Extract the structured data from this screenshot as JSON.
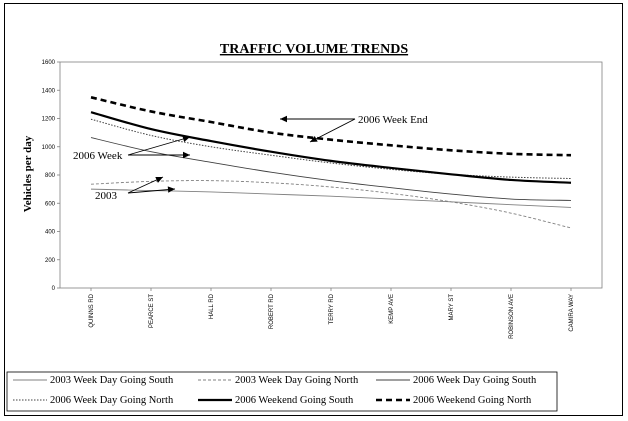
{
  "chart_data": {
    "type": "line",
    "title": "TRAFFIC VOLUME TRENDS",
    "xlabel": "",
    "ylabel": "Vehicles per day",
    "ylim": [
      0,
      1600
    ],
    "yticks": [
      0,
      200,
      400,
      600,
      800,
      1000,
      1200,
      1400,
      1600
    ],
    "categories": [
      "QUINNS RD",
      "PEARCE ST",
      "HALL RD",
      "ROBERT RD",
      "TERRY RD",
      "KEMP AVE",
      "MARY ST",
      "ROBINSON AVE",
      "CAMIRA WAY"
    ],
    "grid": "horizontal-top-only",
    "legend_placement": "bottom",
    "series": [
      {
        "name": "2003 Week Day Going South",
        "style": "thin-solid",
        "color": "#808080",
        "values": [
          700,
          690,
          680,
          665,
          650,
          630,
          610,
          590,
          570
        ]
      },
      {
        "name": "2003 Week Day Going North",
        "style": "thin-dashed",
        "color": "#808080",
        "values": [
          735,
          755,
          760,
          745,
          715,
          670,
          610,
          530,
          425
        ]
      },
      {
        "name": "2006 Week Day Going South",
        "style": "thin-solid",
        "color": "#404040",
        "values": [
          1065,
          965,
          890,
          820,
          760,
          710,
          665,
          630,
          620
        ]
      },
      {
        "name": "2006 Week Day Going North",
        "style": "thin-dotted",
        "color": "#404040",
        "values": [
          1195,
          1080,
          1000,
          940,
          885,
          840,
          805,
          785,
          775
        ]
      },
      {
        "name": "2006 Weekend Going South",
        "style": "thick-solid",
        "color": "#000000",
        "values": [
          1245,
          1125,
          1040,
          965,
          900,
          850,
          805,
          765,
          745
        ]
      },
      {
        "name": "2006 Weekend Going North",
        "style": "thick-dashed",
        "color": "#000000",
        "values": [
          1350,
          1250,
          1175,
          1100,
          1050,
          1010,
          975,
          950,
          940
        ]
      }
    ],
    "annotations": [
      "2006 Week End",
      "2006 Week",
      "2003"
    ]
  }
}
